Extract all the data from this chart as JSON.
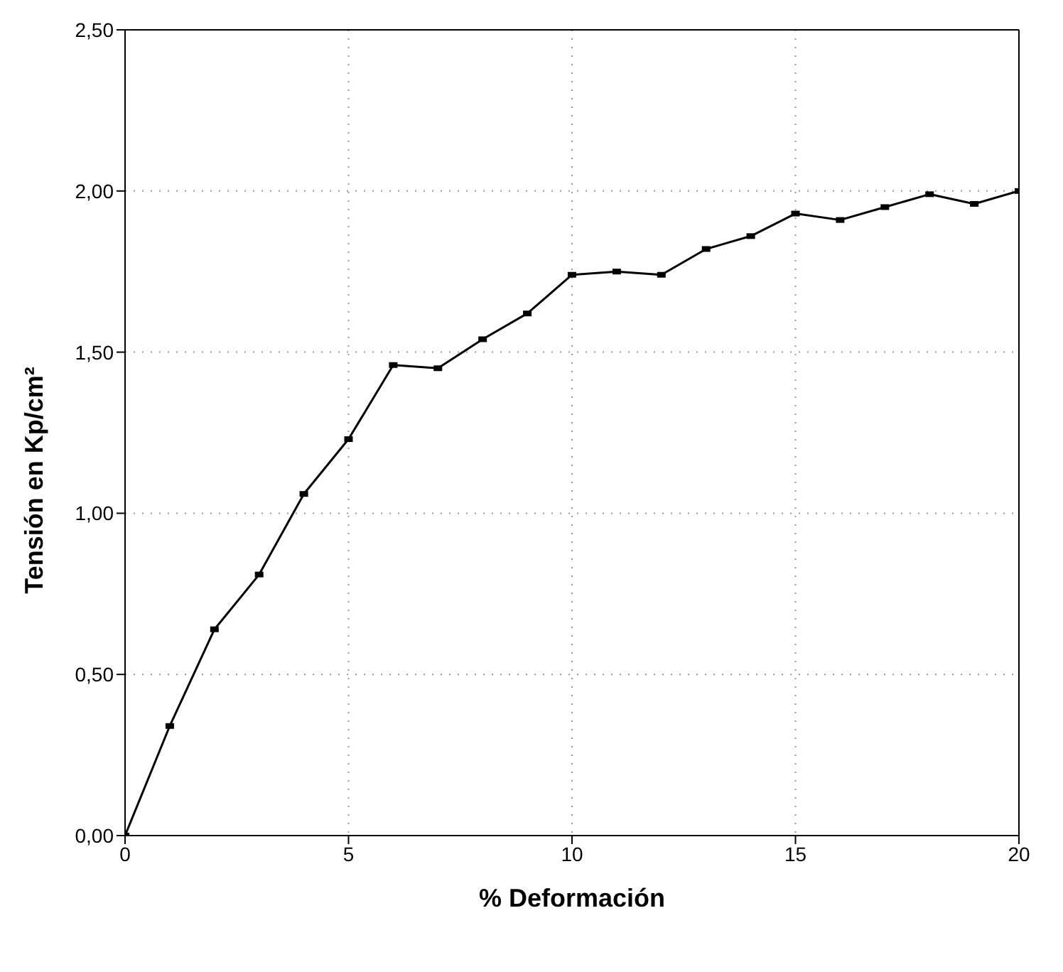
{
  "chart_data": {
    "type": "line",
    "xlabel": "% Deformación",
    "ylabel": "Tensión en Kp/cm²",
    "x": [
      0,
      1,
      2,
      3,
      4,
      5,
      6,
      7,
      8,
      9,
      10,
      11,
      12,
      13,
      14,
      15,
      16,
      17,
      18,
      19,
      20
    ],
    "series": [
      {
        "color": "#000000",
        "values": [
          0,
          0.34,
          0.64,
          0.81,
          1.06,
          1.23,
          1.46,
          1.45,
          1.54,
          1.62,
          1.74,
          1.75,
          1.74,
          1.82,
          1.86,
          1.93,
          1.91,
          1.95,
          1.99,
          1.96,
          2.0
        ]
      }
    ],
    "xlim": [
      0,
      20
    ],
    "xticks": [
      0,
      5,
      10,
      15,
      20
    ],
    "ylim": [
      0,
      2.5
    ],
    "yticks": [
      {
        "value": 0,
        "label": "0,00"
      },
      {
        "value": 0.5,
        "label": "0,50"
      },
      {
        "value": 1,
        "label": "1,00"
      },
      {
        "value": 1.5,
        "label": "1,50"
      },
      {
        "value": 2,
        "label": "2,00"
      },
      {
        "value": 2.5,
        "label": "2,50"
      }
    ],
    "grid": true,
    "marker": "square",
    "line_style": "solid"
  }
}
